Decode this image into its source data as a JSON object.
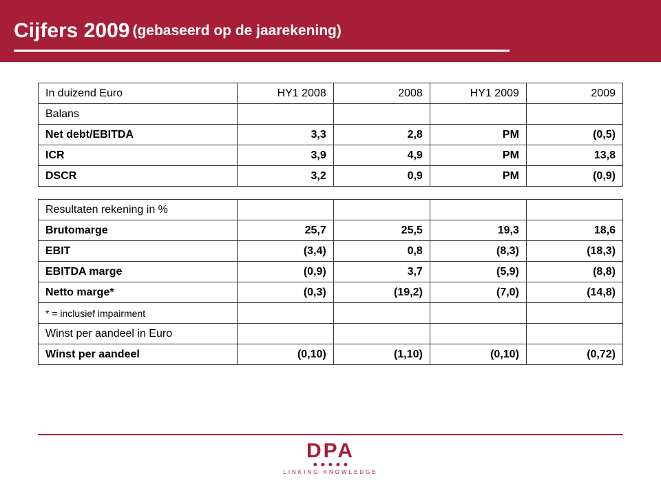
{
  "colors": {
    "brand": "#a71f36",
    "border": "#333333",
    "text": "#000000",
    "white": "#ffffff"
  },
  "header": {
    "title_main": "Cijfers 2009",
    "title_sub": "(gebaseerd op de jaarekening)"
  },
  "table1": {
    "header_label": "In duizend Euro",
    "columns": [
      "HY1 2008",
      "2008",
      "HY1 2009",
      "2009"
    ],
    "section": "Balans",
    "rows": [
      {
        "label": "Net debt/EBITDA",
        "values": [
          "3,3",
          "2,8",
          "PM",
          "(0,5)"
        ],
        "bold": true
      },
      {
        "label": "ICR",
        "values": [
          "3,9",
          "4,9",
          "PM",
          "13,8"
        ],
        "bold": true
      },
      {
        "label": "DSCR",
        "values": [
          "3,2",
          "0,9",
          "PM",
          "(0,9)"
        ],
        "bold": true
      }
    ]
  },
  "table2": {
    "section": "Resultaten rekening in %",
    "rows": [
      {
        "label": "Brutomarge",
        "values": [
          "25,7",
          "25,5",
          "19,3",
          "18,6"
        ],
        "bold": true
      },
      {
        "label": "EBIT",
        "values": [
          "(3,4)",
          "0,8",
          "(8,3)",
          "(18,3)"
        ],
        "bold": true
      },
      {
        "label": "EBITDA marge",
        "values": [
          "(0,9)",
          "3,7",
          "(5,9)",
          "(8,8)"
        ],
        "bold": true
      },
      {
        "label": "Netto marge*",
        "values": [
          "(0,3)",
          "(19,2)",
          "(7,0)",
          "(14,8)"
        ],
        "bold": true
      }
    ],
    "footnote": "* = inclusief impairment"
  },
  "table3": {
    "section": "Winst per aandeel in Euro",
    "rows": [
      {
        "label": "Winst per aandeel",
        "values": [
          "(0,10)",
          "(1,10)",
          "(0,10)",
          "(0,72)"
        ],
        "bold": true
      }
    ]
  },
  "footer": {
    "logo_text": "DPA",
    "tagline": "LINKING KNOWLEDGE"
  }
}
